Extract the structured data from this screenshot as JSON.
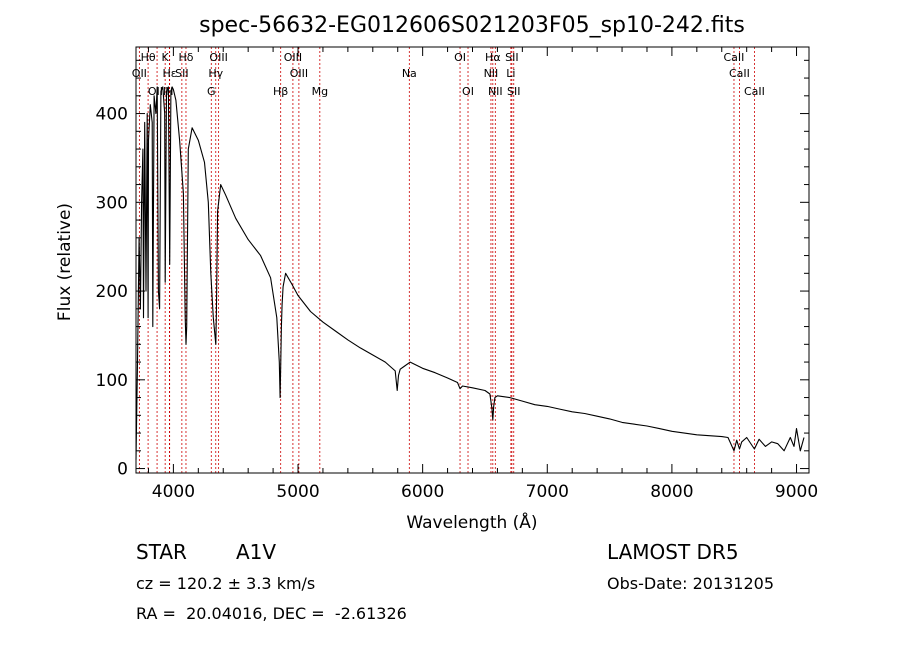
{
  "chart_data": {
    "type": "line",
    "title": "spec-56632-EG012606S021203F05_sp10-242.fits",
    "xlabel": "Wavelength (Å)",
    "ylabel": "Flux (relative)",
    "xlim": [
      3700,
      9100
    ],
    "ylim": [
      -5,
      475
    ],
    "xticks": [
      4000,
      5000,
      6000,
      7000,
      8000,
      9000
    ],
    "yticks": [
      0,
      100,
      200,
      300,
      400
    ],
    "grid": false,
    "line_color": "#000000",
    "marker_color": "#cc0000",
    "series": [
      {
        "x": [
          3700,
          3712,
          3725,
          3735,
          3745,
          3755,
          3760,
          3770,
          3780,
          3790,
          3797,
          3800,
          3815,
          3830,
          3835,
          3845,
          3860,
          3870,
          3880,
          3889,
          3900,
          3915,
          3930,
          3934,
          3945,
          3960,
          3970,
          3980,
          3990,
          4000,
          4020,
          4050,
          4080,
          4095,
          4101,
          4107,
          4120,
          4150,
          4200,
          4250,
          4280,
          4300,
          4320,
          4340,
          4345,
          4355,
          4380,
          4420,
          4500,
          4600,
          4700,
          4780,
          4830,
          4850,
          4856,
          4861,
          4867,
          4872,
          4880,
          4900,
          4950,
          5000,
          5100,
          5200,
          5300,
          5400,
          5500,
          5600,
          5700,
          5780,
          5796,
          5806,
          5820,
          5850,
          5900,
          6000,
          6100,
          6200,
          6280,
          6300,
          6320,
          6400,
          6500,
          6540,
          6556,
          6563,
          6570,
          6580,
          6600,
          6700,
          6800,
          6900,
          7000,
          7100,
          7200,
          7300,
          7400,
          7500,
          7600,
          7700,
          7800,
          7900,
          8000,
          8100,
          8200,
          8300,
          8400,
          8450,
          8498,
          8520,
          8542,
          8560,
          8600,
          8662,
          8700,
          8750,
          8800,
          8850,
          8900,
          8950,
          8980,
          9000,
          9030,
          9060
        ],
        "y": [
          10,
          120,
          260,
          180,
          300,
          360,
          170,
          390,
          200,
          400,
          170,
          370,
          410,
          390,
          160,
          420,
          400,
          430,
          200,
          180,
          425,
          430,
          400,
          210,
          425,
          430,
          230,
          425,
          430,
          427,
          415,
          370,
          310,
          170,
          140,
          160,
          360,
          384,
          370,
          345,
          300,
          220,
          170,
          140,
          175,
          290,
          320,
          308,
          282,
          258,
          240,
          215,
          170,
          120,
          80,
          115,
          160,
          185,
          205,
          220,
          208,
          195,
          177,
          165,
          155,
          145,
          136,
          128,
          120,
          110,
          88,
          105,
          112,
          115,
          120,
          113,
          108,
          102,
          97,
          90,
          93,
          91,
          88,
          84,
          68,
          55,
          70,
          80,
          82,
          80,
          76,
          72,
          70,
          67,
          64,
          62,
          59,
          56,
          52,
          50,
          48,
          45,
          42,
          40,
          38,
          37,
          36,
          35,
          20,
          32,
          22,
          30,
          35,
          22,
          33,
          25,
          30,
          28,
          20,
          35,
          25,
          45,
          20,
          35
        ]
      }
    ],
    "line_markers": [
      {
        "name": "Hθ",
        "x": 3797,
        "row": 1
      },
      {
        "name": "K",
        "x": 3934,
        "row": 1
      },
      {
        "name": "Hδ",
        "x": 4101,
        "row": 1
      },
      {
        "name": "OIII",
        "x": 4363,
        "row": 1
      },
      {
        "name": "OIII",
        "x": 4959,
        "row": 1
      },
      {
        "name": "OI",
        "x": 6300,
        "row": 1
      },
      {
        "name": "Hα",
        "x": 6563,
        "row": 1
      },
      {
        "name": "SII",
        "x": 6716,
        "row": 1
      },
      {
        "name": "CaII",
        "x": 8498,
        "row": 1
      },
      {
        "name": "OII",
        "x": 3727,
        "row": 2
      },
      {
        "name": "Hε",
        "x": 3970,
        "row": 2
      },
      {
        "name": "SII",
        "x": 4068,
        "row": 2
      },
      {
        "name": "Hγ",
        "x": 4340,
        "row": 2
      },
      {
        "name": "OIII",
        "x": 5007,
        "row": 2
      },
      {
        "name": "Na",
        "x": 5893,
        "row": 2
      },
      {
        "name": "NII",
        "x": 6548,
        "row": 2
      },
      {
        "name": "Li",
        "x": 6708,
        "row": 2
      },
      {
        "name": "CaII",
        "x": 8542,
        "row": 2
      },
      {
        "name": "OIII",
        "x": 3869,
        "row": 3
      },
      {
        "name": "H",
        "x": 3968,
        "row": 3
      },
      {
        "name": "G",
        "x": 4304,
        "row": 3
      },
      {
        "name": "Hβ",
        "x": 4861,
        "row": 3
      },
      {
        "name": "Mg",
        "x": 5175,
        "row": 3
      },
      {
        "name": "OI",
        "x": 6364,
        "row": 3
      },
      {
        "name": "NII",
        "x": 6583,
        "row": 3
      },
      {
        "name": "SII",
        "x": 6731,
        "row": 3
      },
      {
        "name": "CaII",
        "x": 8662,
        "row": 3
      }
    ]
  },
  "info": {
    "class": "STAR",
    "subclass": "A1V",
    "survey": "LAMOST DR5",
    "cz": "cz = 120.2 ± 3.3 km/s",
    "obs_date": "Obs-Date: 20131205",
    "radec": "RA =  20.04016, DEC =  -2.61326"
  }
}
